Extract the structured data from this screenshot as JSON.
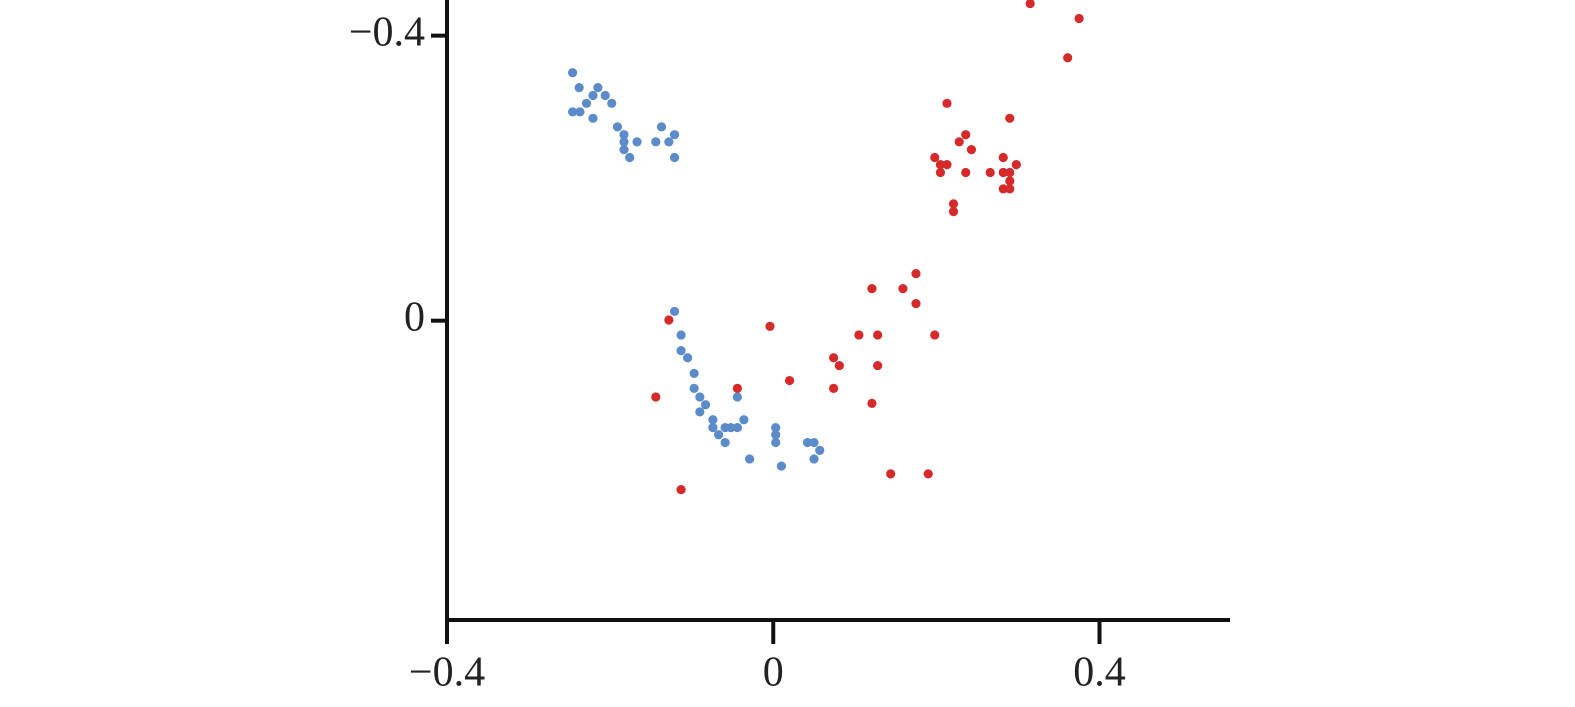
{
  "chart_data": {
    "type": "scatter",
    "xlim": [
      -0.4,
      0.56
    ],
    "xticks": [
      {
        "value": -0.4,
        "label": "−0.4"
      },
      0,
      0.4
    ],
    "ylim": [
      -0.45,
      0.42
    ],
    "y_inverted": true,
    "yticks": [
      {
        "value": -0.4,
        "label": "−0.4"
      },
      0
    ],
    "series": [
      {
        "color": "#5b8bc9",
        "x": [
          -0.246,
          -0.238,
          -0.246,
          -0.237,
          -0.229,
          -0.221,
          -0.215,
          -0.206,
          -0.198,
          -0.221,
          -0.191,
          -0.183,
          -0.183,
          -0.183,
          -0.176,
          -0.167,
          -0.144,
          -0.137,
          -0.128,
          -0.121,
          -0.121,
          -0.121,
          -0.113,
          -0.113,
          -0.105,
          -0.097,
          -0.097,
          -0.09,
          -0.09,
          -0.083,
          -0.074,
          -0.074,
          -0.067,
          -0.059,
          -0.059,
          -0.052,
          -0.044,
          -0.044,
          -0.036,
          -0.029,
          0.003,
          0.003,
          0.003,
          0.01,
          0.042,
          0.05,
          0.05,
          0.057
        ],
        "values": [
          -0.348,
          -0.327,
          -0.293,
          -0.293,
          -0.305,
          -0.316,
          -0.327,
          -0.316,
          -0.305,
          -0.284,
          -0.272,
          -0.261,
          -0.251,
          -0.24,
          -0.229,
          -0.251,
          -0.251,
          -0.272,
          -0.251,
          -0.261,
          -0.229,
          -0.013,
          0.02,
          0.042,
          0.052,
          0.074,
          0.095,
          0.107,
          0.128,
          0.118,
          0.139,
          0.15,
          0.16,
          0.171,
          0.15,
          0.15,
          0.15,
          0.107,
          0.139,
          0.194,
          0.15,
          0.16,
          0.171,
          0.204,
          0.171,
          0.171,
          0.194,
          0.182
        ]
      },
      {
        "color": "#d62a2a",
        "x": [
          0.315,
          0.375,
          0.361,
          0.213,
          0.29,
          0.236,
          0.228,
          0.243,
          0.198,
          0.282,
          0.205,
          0.213,
          0.298,
          0.205,
          0.236,
          0.266,
          0.282,
          0.29,
          0.29,
          0.282,
          0.29,
          0.221,
          0.221,
          0.175,
          0.121,
          0.159,
          0.175,
          -0.128,
          -0.004,
          0.105,
          0.128,
          0.198,
          0.074,
          0.081,
          0.128,
          0.02,
          -0.044,
          0.074,
          -0.144,
          0.121,
          0.144,
          0.19,
          -0.113
        ],
        "values": [
          -0.445,
          -0.424,
          -0.369,
          -0.305,
          -0.284,
          -0.261,
          -0.251,
          -0.24,
          -0.229,
          -0.229,
          -0.219,
          -0.219,
          -0.219,
          -0.208,
          -0.208,
          -0.208,
          -0.208,
          -0.208,
          -0.196,
          -0.185,
          -0.185,
          -0.164,
          -0.153,
          -0.066,
          -0.045,
          -0.045,
          -0.024,
          -0.001,
          0.008,
          0.02,
          0.02,
          0.02,
          0.052,
          0.063,
          0.063,
          0.084,
          0.095,
          0.095,
          0.107,
          0.116,
          0.215,
          0.215,
          0.237
        ]
      }
    ]
  }
}
